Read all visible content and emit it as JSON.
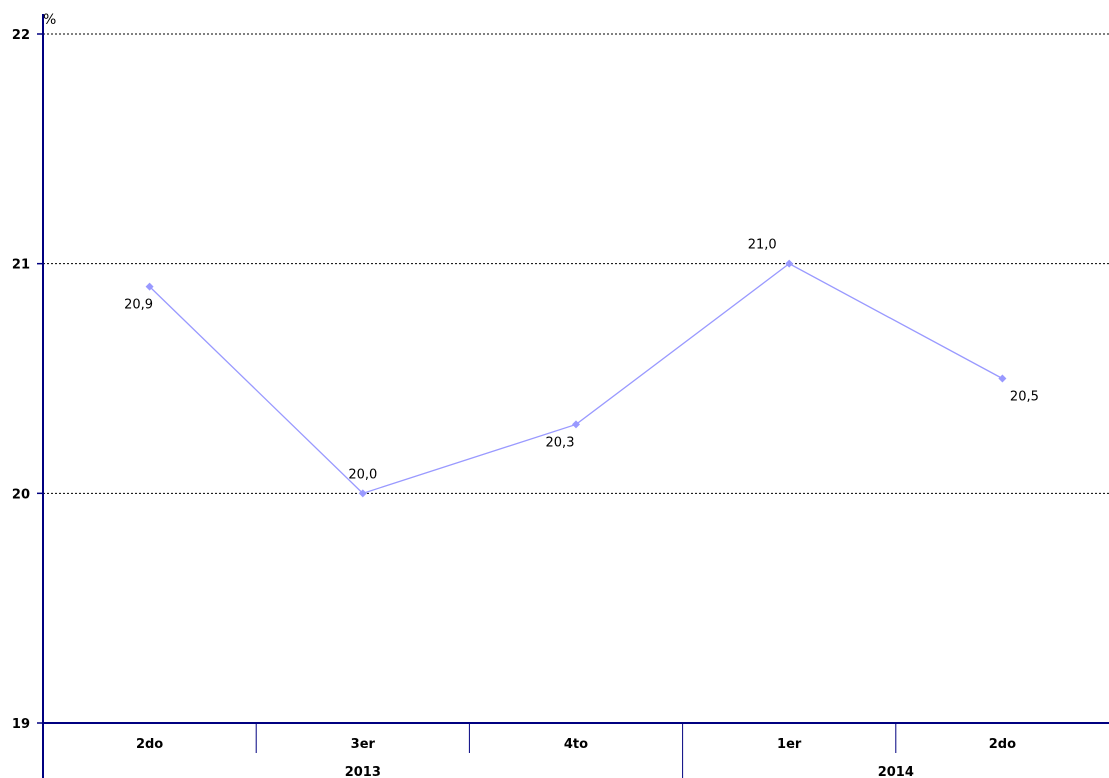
{
  "chart_data": {
    "type": "line",
    "unit_label": "%",
    "categories": [
      "2do",
      "3er",
      "4to",
      "1er",
      "2do"
    ],
    "groups": [
      {
        "label": "2013",
        "span": [
          0,
          2
        ]
      },
      {
        "label": "2014",
        "span": [
          3,
          4
        ]
      }
    ],
    "series": [
      {
        "values": [
          20.9,
          20.0,
          20.3,
          21.0,
          20.5
        ],
        "color": "#9999ff"
      }
    ],
    "data_labels": [
      "20,9",
      "20,0",
      "20,3",
      "21,0",
      "20,5"
    ],
    "y_ticks": [
      "19",
      "20",
      "21",
      "22"
    ],
    "ylim": [
      19,
      22
    ],
    "grid": "horizontal-dashed",
    "axis_color": "#000080"
  }
}
